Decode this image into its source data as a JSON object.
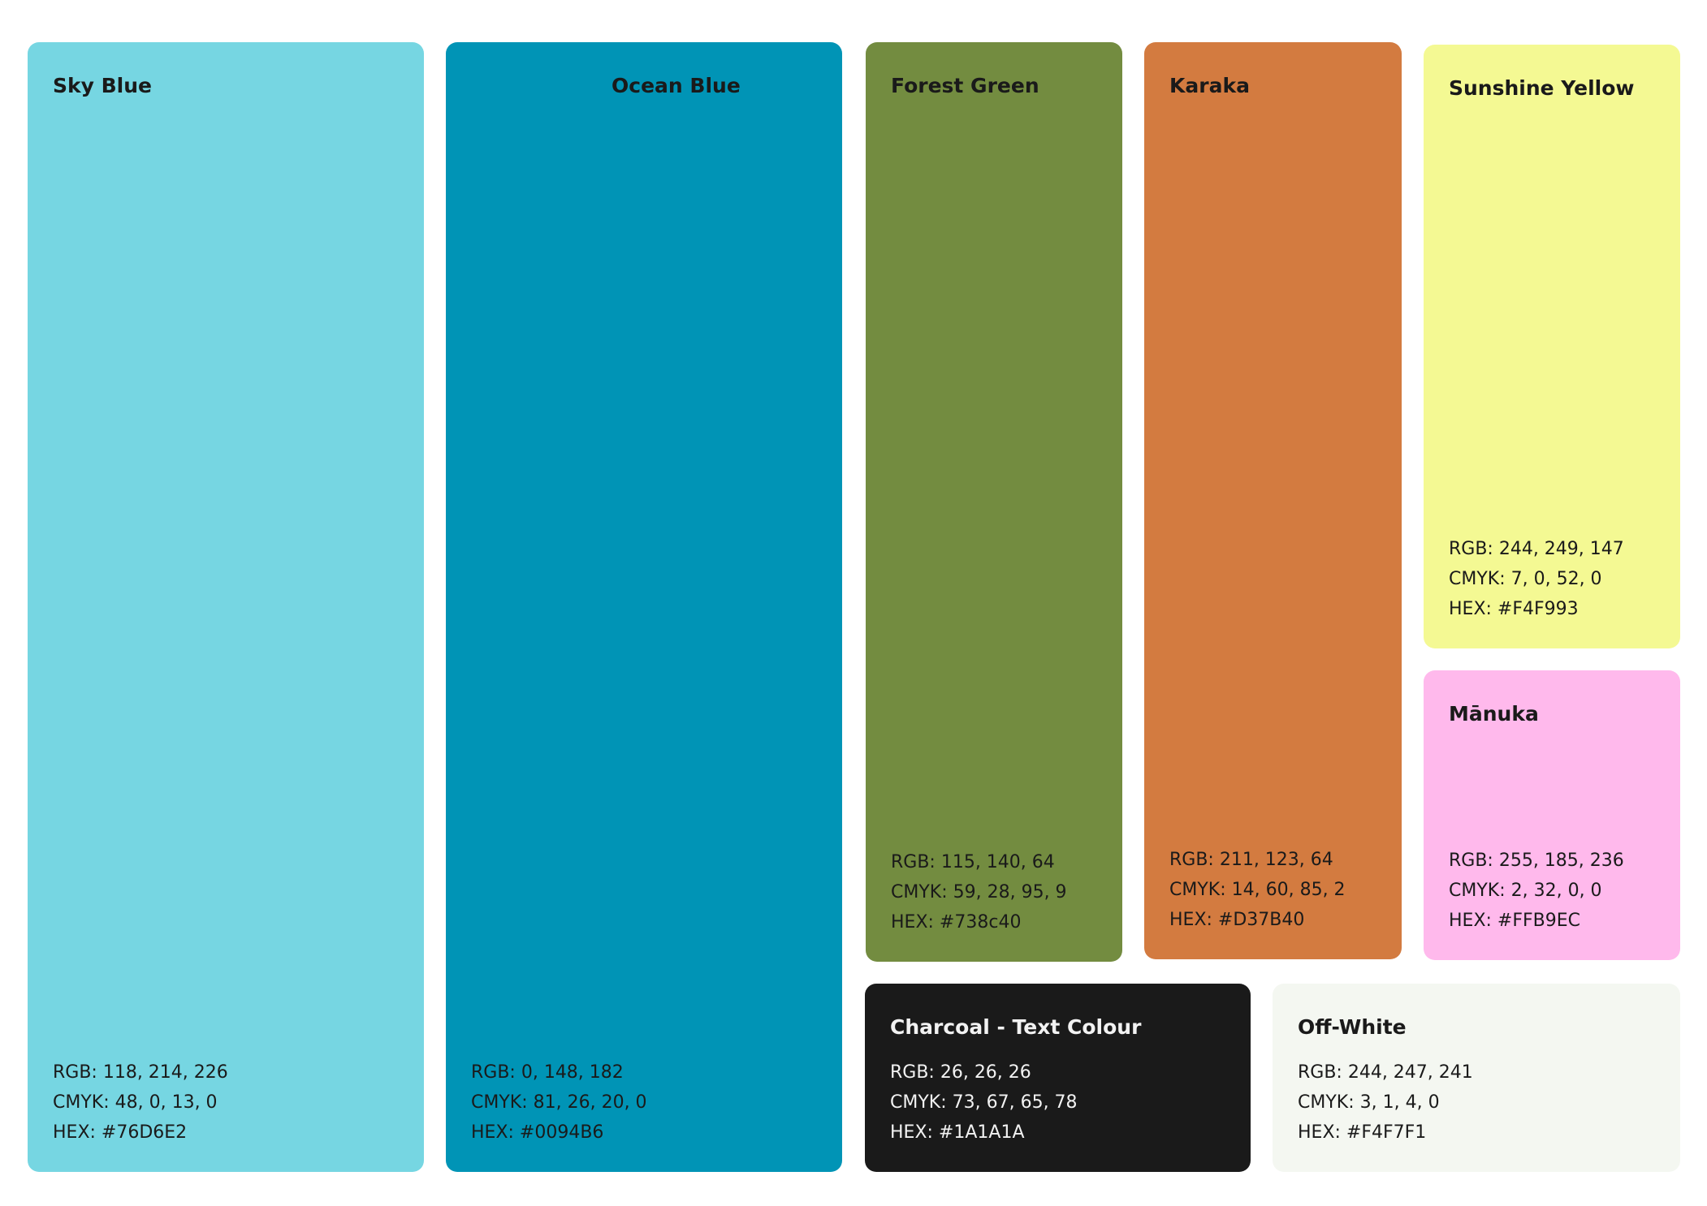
{
  "swatches": {
    "sky": {
      "name": "Sky Blue",
      "color": "#76D6E2",
      "rgb": "RGB: 118, 214, 226",
      "cmyk": "CMYK: 48, 0, 13, 0",
      "hex": "HEX: #76D6E2"
    },
    "ocean": {
      "name": "Ocean Blue",
      "color": "#0094B6",
      "rgb": "RGB: 0, 148, 182",
      "cmyk": "CMYK: 81, 26, 20, 0",
      "hex": "HEX: #0094B6"
    },
    "forest": {
      "name": "Forest Green",
      "color": "#738C40",
      "rgb": "RGB: 115, 140, 64",
      "cmyk": "CMYK: 59, 28, 95, 9",
      "hex": "HEX: #738c40"
    },
    "karaka": {
      "name": "Karaka",
      "color": "#D37B40",
      "rgb": "RGB: 211, 123, 64",
      "cmyk": "CMYK: 14, 60, 85, 2",
      "hex": "HEX: #D37B40"
    },
    "sunshine": {
      "name": "Sunshine Yellow",
      "color": "#F4F993",
      "rgb": "RGB: 244, 249, 147",
      "cmyk": "CMYK: 7, 0, 52, 0",
      "hex": "HEX: #F4F993"
    },
    "manuka": {
      "name": "Mānuka",
      "color": "#FFB9EC",
      "rgb": "RGB: 255, 185, 236",
      "cmyk": "CMYK: 2, 32, 0, 0",
      "hex": "HEX: #FFB9EC"
    },
    "charcoal": {
      "name": "Charcoal - Text Colour",
      "color": "#1A1A1A",
      "rgb": "RGB: 26, 26, 26",
      "cmyk": "CMYK: 73, 67, 65, 78",
      "hex": "HEX: #1A1A1A"
    },
    "offwhite": {
      "name": "Off-White",
      "color": "#F4F7F1",
      "rgb": "RGB: 244, 247, 241",
      "cmyk": "CMYK: 3, 1, 4, 0",
      "hex": "HEX: #F4F7F1"
    }
  }
}
